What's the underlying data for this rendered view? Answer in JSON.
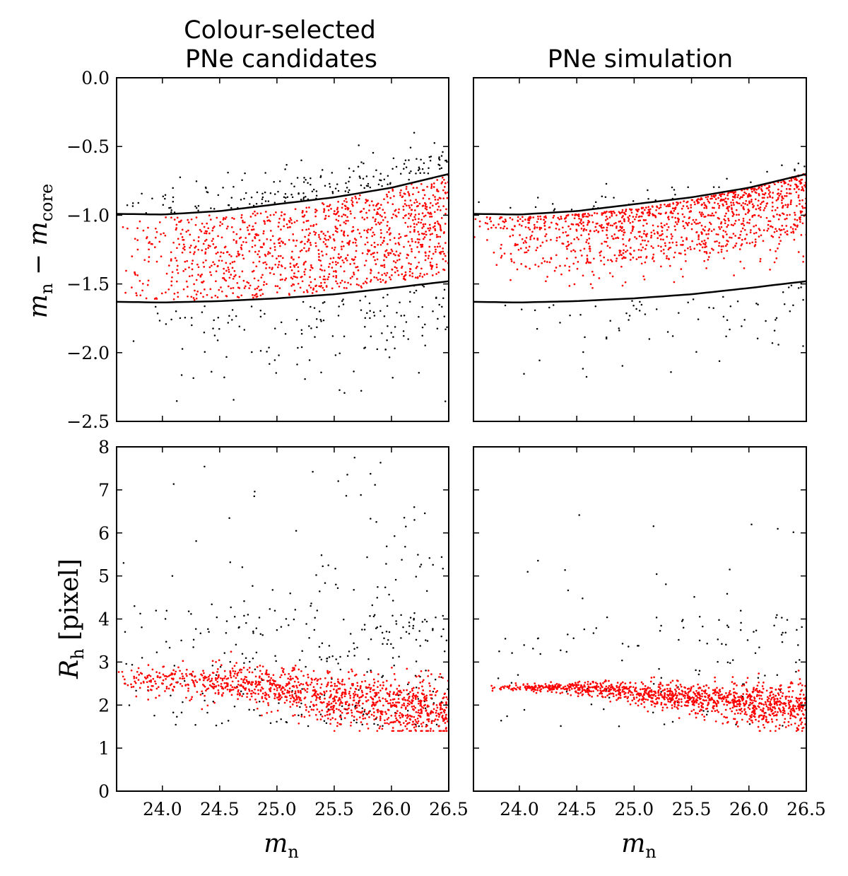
{
  "figure": {
    "panel_titles": {
      "left": [
        "Colour-selected",
        "PNe candidates"
      ],
      "right": "PNe simulation"
    },
    "ylabels": {
      "top": {
        "main": "m",
        "sub1": "n",
        "minus": " − m",
        "sub2": "core"
      },
      "bottom": {
        "main": "R",
        "sub1": "h",
        "rest": " [pixel]"
      }
    },
    "xlabel": {
      "main": "m",
      "sub": "n"
    },
    "colors": {
      "candidates": "#ff0000",
      "rejected": "#000000",
      "curves": "#000000"
    }
  },
  "chart_data": [
    {
      "id": "top-left",
      "type": "scatter",
      "title": "Colour-selected PNe candidates",
      "xlabel": "m_n",
      "ylabel": "m_n − m_core",
      "xlim": [
        23.6,
        26.5
      ],
      "ylim": [
        -2.5,
        0.0
      ],
      "xticks": [
        "24.0",
        "24.5",
        "25.0",
        "25.5",
        "26.0",
        "26.5"
      ],
      "yticks": [
        "0.0",
        "−0.5",
        "−1.0",
        "−1.5",
        "−2.0",
        "−2.5"
      ],
      "ytick_values": [
        0.0,
        -0.5,
        -1.0,
        -1.5,
        -2.0,
        -2.5
      ],
      "curves": [
        {
          "name": "upper limit",
          "points": [
            [
              23.6,
              -0.99
            ],
            [
              24.0,
              -0.995
            ],
            [
              24.5,
              -0.97
            ],
            [
              25.0,
              -0.92
            ],
            [
              25.5,
              -0.87
            ],
            [
              26.0,
              -0.8
            ],
            [
              26.5,
              -0.7
            ]
          ]
        },
        {
          "name": "lower limit",
          "points": [
            [
              23.6,
              -1.63
            ],
            [
              24.0,
              -1.635
            ],
            [
              24.5,
              -1.625
            ],
            [
              25.0,
              -1.605
            ],
            [
              25.5,
              -1.575
            ],
            [
              26.0,
              -1.53
            ],
            [
              26.5,
              -1.48
            ]
          ]
        }
      ],
      "series": [
        {
          "name": "selected PNe",
          "color": "#ff0000",
          "n_points": 1200,
          "x_range": [
            23.6,
            26.5
          ],
          "y_range": [
            -1.6,
            -0.75
          ]
        },
        {
          "name": "rejected sources",
          "color": "#000000",
          "n_points": 340,
          "x_range": [
            23.7,
            26.5
          ],
          "y_range": [
            -2.5,
            -0.38
          ]
        }
      ]
    },
    {
      "id": "top-right",
      "type": "scatter",
      "title": "PNe simulation",
      "xlabel": "m_n",
      "ylabel": "m_n − m_core",
      "xlim": [
        23.6,
        26.5
      ],
      "ylim": [
        -2.5,
        0.0
      ],
      "xticks": [
        "24.0",
        "24.5",
        "25.0",
        "25.5",
        "26.0",
        "26.5"
      ],
      "ytick_values": [
        0.0,
        -0.5,
        -1.0,
        -1.5,
        -2.0,
        -2.5
      ],
      "curves": [
        {
          "name": "upper limit",
          "points": [
            [
              23.6,
              -0.99
            ],
            [
              24.0,
              -0.995
            ],
            [
              24.5,
              -0.97
            ],
            [
              25.0,
              -0.92
            ],
            [
              25.5,
              -0.87
            ],
            [
              26.0,
              -0.8
            ],
            [
              26.5,
              -0.7
            ]
          ]
        },
        {
          "name": "lower limit",
          "points": [
            [
              23.6,
              -1.63
            ],
            [
              24.0,
              -1.635
            ],
            [
              24.5,
              -1.625
            ],
            [
              25.0,
              -1.605
            ],
            [
              25.5,
              -1.575
            ],
            [
              26.0,
              -1.53
            ],
            [
              26.5,
              -1.48
            ]
          ]
        }
      ],
      "series": [
        {
          "name": "simulated PNe (selected)",
          "color": "#ff0000",
          "n_points": 1200,
          "x_range": [
            23.6,
            26.5
          ],
          "y_range": [
            -1.6,
            -0.75
          ]
        },
        {
          "name": "simulated PNe (rejected)",
          "color": "#000000",
          "n_points": 110,
          "x_range": [
            23.7,
            26.5
          ],
          "y_range": [
            -2.25,
            -0.55
          ]
        }
      ]
    },
    {
      "id": "bottom-left",
      "type": "scatter",
      "xlabel": "m_n",
      "ylabel": "R_h [pixel]",
      "xlim": [
        23.6,
        26.5
      ],
      "ylim": [
        0,
        8
      ],
      "xticks": [
        "24.0",
        "24.5",
        "25.0",
        "25.5",
        "26.0",
        "26.5"
      ],
      "xtick_values": [
        24.0,
        24.5,
        25.0,
        25.5,
        26.0,
        26.5
      ],
      "yticks": [
        "0",
        "1",
        "2",
        "3",
        "4",
        "5",
        "6",
        "7",
        "8"
      ],
      "ytick_values": [
        0,
        1,
        2,
        3,
        4,
        5,
        6,
        7,
        8
      ],
      "series": [
        {
          "name": "selected PNe",
          "color": "#ff0000",
          "n_points": 1200,
          "x_range": [
            23.6,
            26.5
          ],
          "y_range": [
            1.4,
            3.4
          ]
        },
        {
          "name": "rejected sources",
          "color": "#000000",
          "n_points": 330,
          "x_range": [
            23.8,
            26.5
          ],
          "y_range": [
            1.3,
            7.8
          ]
        }
      ]
    },
    {
      "id": "bottom-right",
      "type": "scatter",
      "xlabel": "m_n",
      "ylabel": "R_h [pixel]",
      "xlim": [
        23.6,
        26.5
      ],
      "ylim": [
        0,
        8
      ],
      "xticks": [
        "24.0",
        "24.5",
        "25.0",
        "25.5",
        "26.0",
        "26.5"
      ],
      "xtick_values": [
        24.0,
        24.5,
        25.0,
        25.5,
        26.0,
        26.5
      ],
      "ytick_values": [
        0,
        1,
        2,
        3,
        4,
        5,
        6,
        7,
        8
      ],
      "series": [
        {
          "name": "simulated PNe (selected)",
          "color": "#ff0000",
          "n_points": 1200,
          "x_range": [
            23.75,
            26.5
          ],
          "y_range": [
            1.5,
            3.4
          ]
        },
        {
          "name": "simulated PNe (rejected)",
          "color": "#000000",
          "n_points": 130,
          "x_range": [
            23.75,
            26.5
          ],
          "y_range": [
            1.5,
            6.8
          ]
        }
      ]
    }
  ]
}
